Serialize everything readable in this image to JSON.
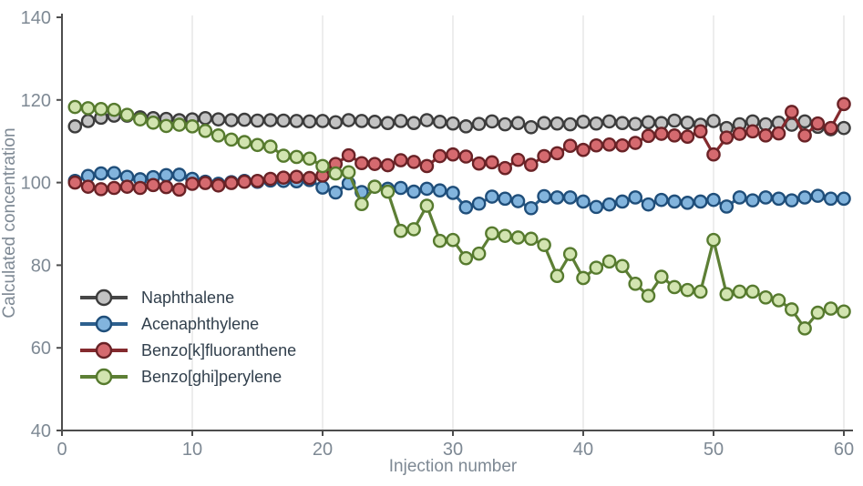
{
  "chart_data": {
    "type": "line",
    "title": "",
    "xlabel": "Injection number",
    "ylabel": "Calculated concentration",
    "xlim": [
      0,
      60
    ],
    "ylim": [
      40,
      140
    ],
    "x_ticks": [
      0,
      10,
      20,
      30,
      40,
      50,
      60
    ],
    "y_ticks": [
      40,
      60,
      80,
      100,
      120,
      140
    ],
    "grid": "vertical-only",
    "legend_position": "lower-left",
    "x": [
      1,
      2,
      3,
      4,
      5,
      6,
      7,
      8,
      9,
      10,
      11,
      12,
      13,
      14,
      15,
      16,
      17,
      18,
      19,
      20,
      21,
      22,
      23,
      24,
      25,
      26,
      27,
      28,
      29,
      30,
      31,
      32,
      33,
      34,
      35,
      36,
      37,
      38,
      39,
      40,
      41,
      42,
      43,
      44,
      45,
      46,
      47,
      48,
      49,
      50,
      51,
      52,
      53,
      54,
      55,
      56,
      57,
      58,
      59,
      60
    ],
    "series": [
      {
        "name": "Naphthalene",
        "line_color": "#474747",
        "marker_fill": "#c3c3c3",
        "marker_stroke": "#3c3c3c",
        "values": [
          113.6,
          114.9,
          115.7,
          116.2,
          116.2,
          115.8,
          115.6,
          115.4,
          115.1,
          115.3,
          115.6,
          115.3,
          115.1,
          115.2,
          115.0,
          115.1,
          115.0,
          114.9,
          114.8,
          114.9,
          114.6,
          115.1,
          114.9,
          114.7,
          114.4,
          114.9,
          114.4,
          115.1,
          114.7,
          114.3,
          113.6,
          114.2,
          114.8,
          114.1,
          114.4,
          113.4,
          114.4,
          114.3,
          114.1,
          114.7,
          114.3,
          114.8,
          114.4,
          114.2,
          114.6,
          114.4,
          115.0,
          114.5,
          114.0,
          114.9,
          113.2,
          114.1,
          114.8,
          114.1,
          114.5,
          114.0,
          114.8,
          113.5,
          112.9,
          113.2
        ]
      },
      {
        "name": "Acenaphthylene",
        "line_color": "#2d608e",
        "marker_fill": "#82b4dd",
        "marker_stroke": "#1f4e7a",
        "values": [
          100.4,
          101.6,
          102.2,
          102.3,
          101.4,
          100.8,
          101.3,
          101.8,
          101.9,
          100.9,
          100.2,
          99.7,
          100.1,
          100.4,
          100.2,
          100.5,
          100.4,
          100.3,
          100.6,
          98.8,
          97.6,
          99.8,
          97.7,
          99.0,
          98.5,
          98.7,
          97.8,
          98.5,
          98.1,
          97.5,
          94.0,
          94.9,
          96.6,
          96.1,
          95.5,
          93.8,
          96.7,
          96.4,
          96.4,
          95.4,
          94.1,
          94.7,
          95.4,
          96.4,
          94.7,
          95.8,
          95.4,
          95.1,
          95.4,
          95.8,
          94.2,
          96.4,
          95.7,
          96.4,
          96.1,
          95.7,
          96.4,
          96.8,
          96.1,
          96.1
        ]
      },
      {
        "name": "Benzo[k]fluoranthene",
        "line_color": "#842a2e",
        "marker_fill": "#d56a6f",
        "marker_stroke": "#692226",
        "values": [
          100.0,
          99.0,
          98.4,
          98.7,
          99.0,
          98.7,
          99.4,
          98.9,
          98.3,
          99.7,
          99.9,
          99.3,
          99.9,
          100.2,
          100.4,
          100.9,
          101.2,
          101.4,
          101.1,
          101.7,
          104.5,
          106.6,
          104.7,
          104.5,
          104.2,
          105.4,
          105.0,
          104.0,
          106.4,
          106.8,
          106.3,
          104.6,
          104.9,
          103.5,
          105.5,
          104.3,
          106.4,
          107.1,
          108.9,
          107.9,
          109.0,
          109.2,
          109.0,
          109.6,
          111.3,
          111.8,
          111.4,
          111.1,
          112.4,
          106.8,
          110.9,
          111.8,
          112.4,
          111.4,
          111.9,
          117.1,
          111.4,
          114.3,
          113.2,
          119.0
        ]
      },
      {
        "name": "Benzo[ghi]perylene",
        "line_color": "#5d7f35",
        "marker_fill": "#d2e4b0",
        "marker_stroke": "#567a2e",
        "values": [
          118.3,
          118.0,
          117.8,
          117.6,
          116.4,
          115.3,
          114.5,
          113.7,
          114.0,
          113.6,
          112.5,
          111.4,
          110.4,
          109.8,
          109.1,
          108.7,
          106.5,
          106.2,
          105.8,
          104.0,
          102.2,
          102.5,
          94.8,
          99.0,
          97.8,
          88.3,
          88.7,
          94.4,
          85.9,
          86.1,
          81.7,
          82.8,
          87.7,
          87.1,
          86.7,
          86.4,
          84.9,
          77.4,
          82.7,
          76.9,
          79.4,
          80.9,
          79.8,
          75.5,
          72.6,
          77.2,
          74.7,
          74.0,
          73.6,
          86.1,
          73.0,
          73.6,
          73.6,
          72.2,
          71.5,
          69.3,
          64.7,
          68.5,
          69.5,
          68.8
        ]
      }
    ],
    "style": {
      "axis_color": "#4d4d4d",
      "grid_color": "#e7e7e7",
      "tick_label_color": "#7e8994",
      "legend_text_color": "#32404d",
      "background": "#ffffff"
    }
  }
}
